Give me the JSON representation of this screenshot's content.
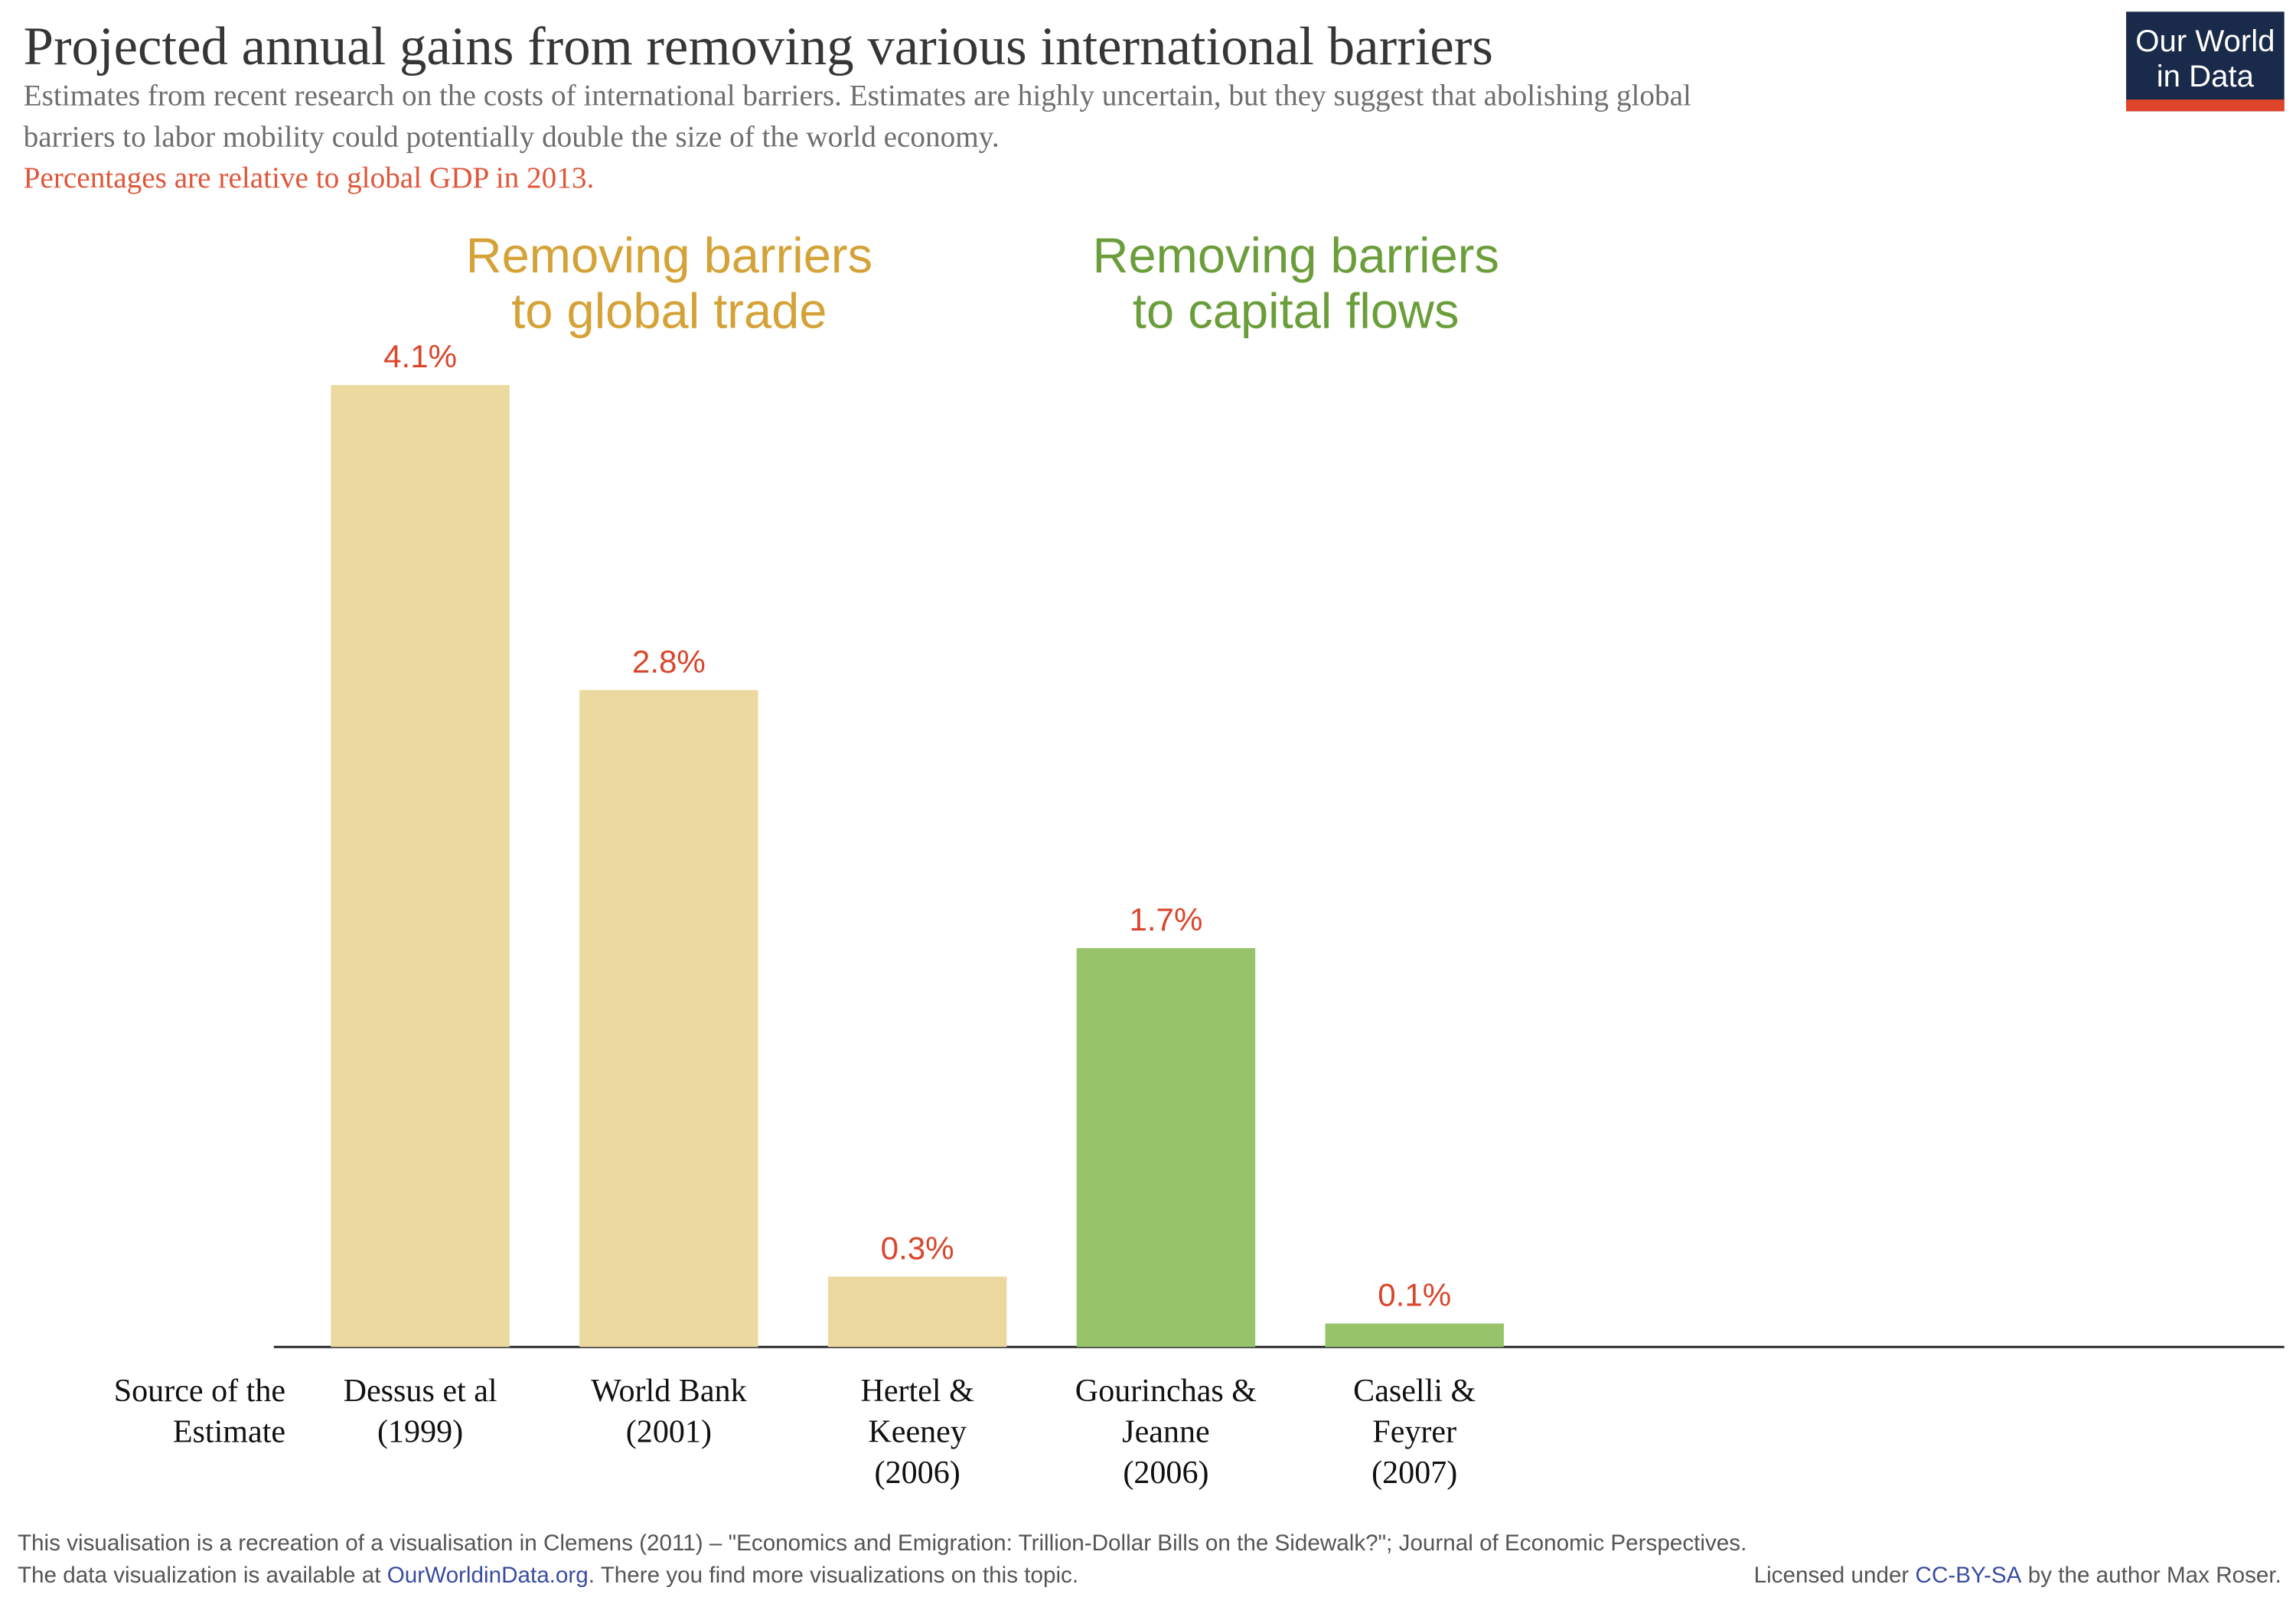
{
  "chart_data": {
    "type": "bar",
    "title": "Projected annual gains from removing various international barriers",
    "subtitle": [
      "Estimates from recent research on the costs of international barriers. Estimates are highly uncertain, but they suggest that abolishing global",
      "barriers to labor mobility could potentially double the size of the world economy."
    ],
    "note": "Percentages are relative to global GDP in 2013.",
    "x_label": [
      "Source of the",
      "Estimate"
    ],
    "categories": [
      [
        "Dessus et al",
        "(1999)"
      ],
      [
        "World Bank",
        "(2001)"
      ],
      [
        "Hertel &",
        "Keeney",
        "(2006)"
      ],
      [
        "Gourinchas &",
        "Jeanne",
        "(2006)"
      ],
      [
        "Caselli &",
        "Feyrer",
        "(2007)"
      ]
    ],
    "values": [
      4.1,
      2.8,
      0.3,
      1.7,
      0.1
    ],
    "value_labels": [
      "4.1%",
      "2.8%",
      "0.3%",
      "1.7%",
      "0.1%"
    ],
    "colors": [
      "#ecd9a0",
      "#ecd9a0",
      "#ecd9a0",
      "#97c46a",
      "#97c46a"
    ],
    "annotations": [
      {
        "text": [
          "Removing barriers",
          "to global trade"
        ],
        "color": "#d4a237"
      },
      {
        "text": [
          "Removing barriers",
          "to capital flows"
        ],
        "color": "#6b9e3a"
      }
    ],
    "footer": {
      "line1": "This visualisation is a recreation of a visualisation in Clemens (2011) – \"Economics and Emigration: Trillion-Dollar Bills on the Sidewalk?\"; Journal of Economic Perspectives.",
      "line2": [
        "The data visualization is available at ",
        "OurWorldinData.org",
        ". There you find more visualizations on this topic."
      ],
      "license": [
        "Licensed under ",
        "CC-BY-SA",
        " by the author Max Roser."
      ]
    },
    "logo": [
      "Our World",
      "in Data"
    ]
  }
}
